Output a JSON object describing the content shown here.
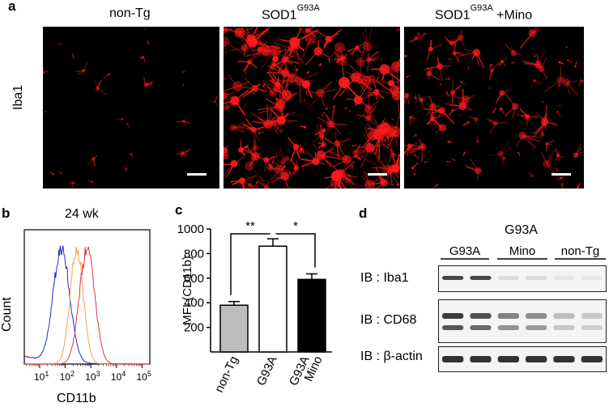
{
  "panels": {
    "a": {
      "letter": "a",
      "column_labels": [
        "non-Tg",
        "SOD1",
        "SOD1"
      ],
      "superscripts": [
        "",
        "G93A",
        "G93A"
      ],
      "suffixes": [
        "",
        "",
        " +Mino"
      ],
      "row_label": "Iba1",
      "density": [
        0.08,
        1.0,
        0.55
      ],
      "colors": {
        "signal": "#ff1a1a",
        "background": "#000000"
      }
    },
    "b": {
      "letter": "b",
      "title": "24 wk",
      "ylabel": "Count",
      "xlabel": "CD11b",
      "x_tick_base": "10",
      "x_tick_exponents": [
        "1",
        "2",
        "3",
        "4",
        "5"
      ],
      "histogram_colors": [
        "#1f2bd6",
        "#f4a34a",
        "#e8333a"
      ]
    },
    "c": {
      "letter": "c",
      "significance": [
        "**",
        "*"
      ]
    },
    "d": {
      "letter": "d",
      "group_header_top": "G93A",
      "group_labels": [
        "G93A",
        "Mino",
        "non-Tg"
      ],
      "rows": [
        "IB : Iba1",
        "IB : CD68",
        "IB : β-actin"
      ],
      "iba1_band_intensity": [
        0.85,
        0.85,
        0.1,
        0.1,
        0.05,
        0.05
      ],
      "cd68_band_intensity": [
        0.9,
        0.8,
        0.55,
        0.5,
        0.25,
        0.2
      ],
      "actin_band_intensity": [
        0.95,
        0.95,
        0.95,
        0.95,
        0.95,
        0.95
      ]
    }
  },
  "chart_data": {
    "type": "bar",
    "categories": [
      "non-Tg",
      "G93A",
      "G93A\nMino"
    ],
    "category_lines": [
      [
        "non-Tg"
      ],
      [
        "G93A"
      ],
      [
        "G93A",
        "Mino"
      ]
    ],
    "values": [
      380,
      860,
      590
    ],
    "errors": [
      30,
      60,
      45
    ],
    "bar_colors": [
      "#bdbdbd",
      "#ffffff",
      "#000000"
    ],
    "ylabel": "MFI (CD11b)",
    "ylim": [
      0,
      1000
    ],
    "yticks": [
      200,
      400,
      600,
      800,
      1000
    ]
  }
}
